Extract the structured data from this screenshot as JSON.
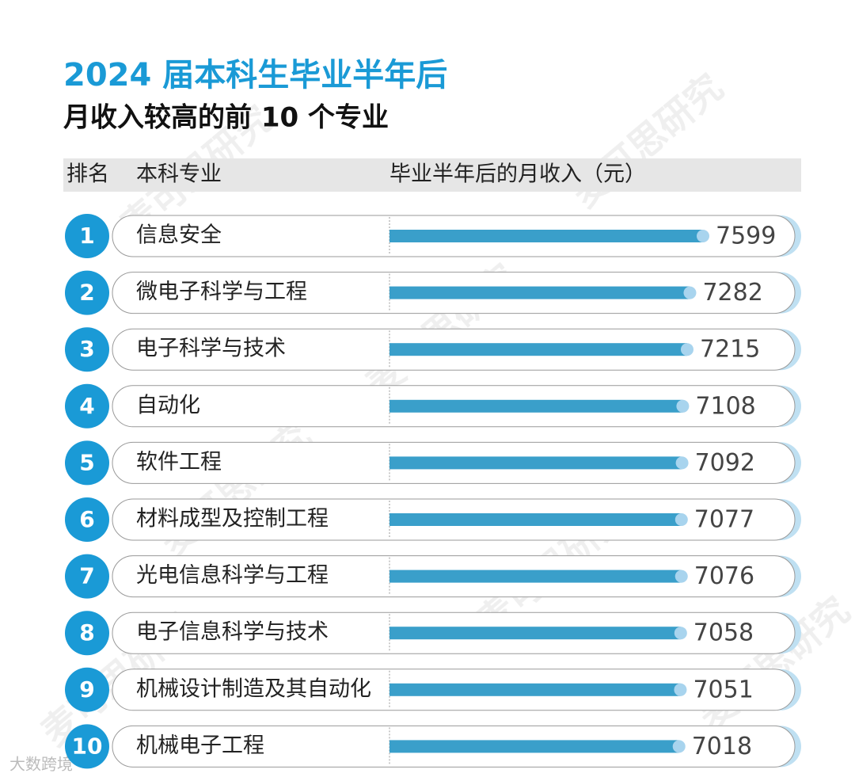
{
  "chart_data": {
    "type": "bar",
    "orientation": "horizontal",
    "title": "2024 届本科生毕业半年后",
    "subtitle": "月收入较高的前 10 个专业",
    "headers": [
      "排名",
      "本科专业",
      "毕业半年后的月收入（元）"
    ],
    "ranks": [
      1,
      2,
      3,
      4,
      5,
      6,
      7,
      8,
      9,
      10
    ],
    "categories": [
      "信息安全",
      "微电子科学与工程",
      "电子科学与技术",
      "自动化",
      "软件工程",
      "材料成型及控制工程",
      "光电信息科学与工程",
      "电子信息科学与技术",
      "机械设计制造及其自动化",
      "机械电子工程"
    ],
    "values": [
      7599,
      7282,
      7215,
      7108,
      7092,
      7077,
      7076,
      7058,
      7051,
      7018
    ],
    "color": "#3a9fca",
    "watermark": "麦可思研究",
    "credit": "大数跨境"
  }
}
